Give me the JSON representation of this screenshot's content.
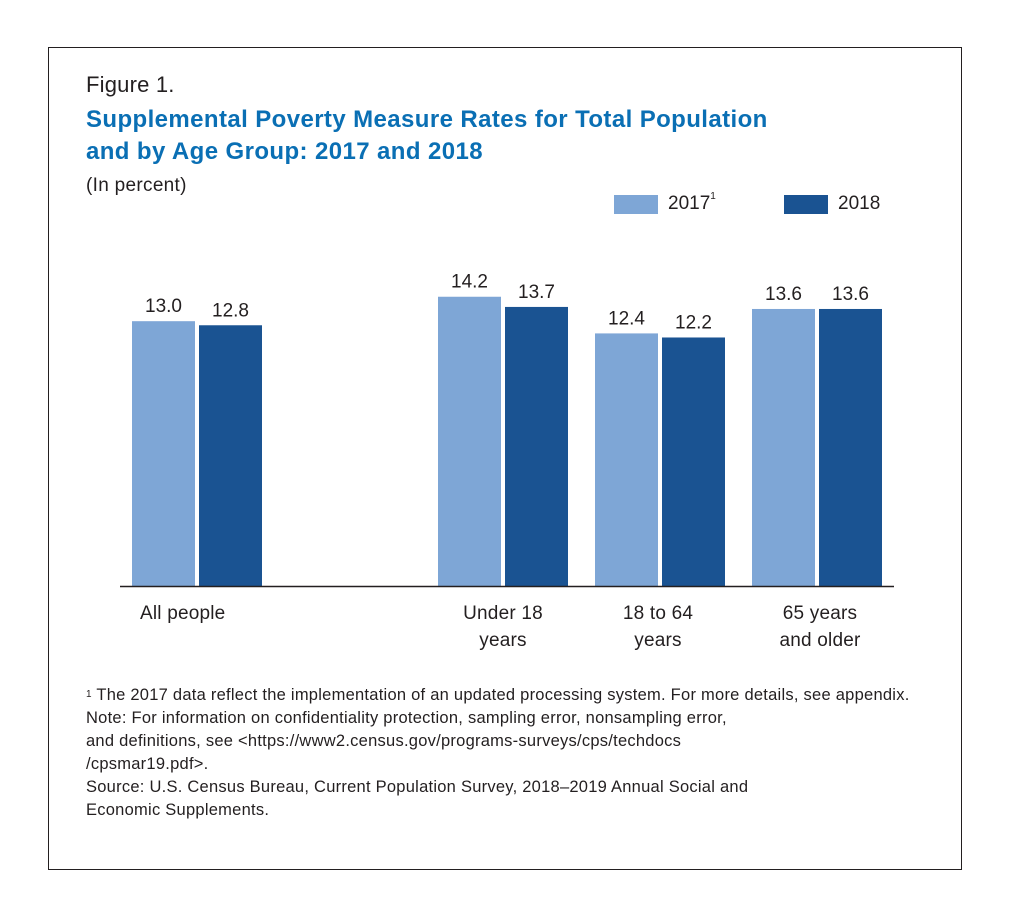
{
  "figure_label": "Figure 1.",
  "title_line1": "Supplemental Poverty Measure Rates for Total Population",
  "title_line2": "and by Age Group: 2017 and 2018",
  "subtitle": "(In percent)",
  "legend": [
    {
      "label": "2017",
      "footnote_mark": "1",
      "color": "#7ea6d6"
    },
    {
      "label": "2018",
      "footnote_mark": "",
      "color": "#1a5392"
    }
  ],
  "notes": {
    "footnote_mark": "1",
    "footnote": "The 2017 data reflect the implementation of an updated processing system. For more details, see appendix.",
    "note_line1": "Note: For information on confidentiality protection, sampling error, nonsampling error,",
    "note_line2": "and definitions, see <https://www2.census.gov/programs-surveys/cps/techdocs",
    "note_line3": "/cpsmar19.pdf>.",
    "source_line1": "Source: U.S. Census Bureau, Current Population Survey, 2018–2019 Annual Social and",
    "source_line2": "Economic Supplements."
  },
  "chart_data": {
    "type": "bar",
    "title": "Supplemental Poverty Measure Rates for Total Population and by Age Group: 2017 and 2018",
    "subtitle": "(In percent)",
    "xlabel": "",
    "ylabel": "Percent",
    "ylim": [
      0,
      14.5
    ],
    "grid": false,
    "legend_position": "top-right",
    "categories": [
      "All people",
      "Under 18\nyears",
      "18 to 64\nyears",
      "65 years\nand older"
    ],
    "series": [
      {
        "name": "2017",
        "color": "#7ea6d6",
        "values": [
          13.0,
          14.2,
          12.4,
          13.6
        ],
        "labels": [
          "13.0",
          "14.2",
          "12.4",
          "13.6"
        ]
      },
      {
        "name": "2018",
        "color": "#1a5392",
        "values": [
          12.8,
          13.7,
          12.2,
          13.6
        ],
        "labels": [
          "12.8",
          "13.7",
          "12.2",
          "13.6"
        ]
      }
    ]
  }
}
